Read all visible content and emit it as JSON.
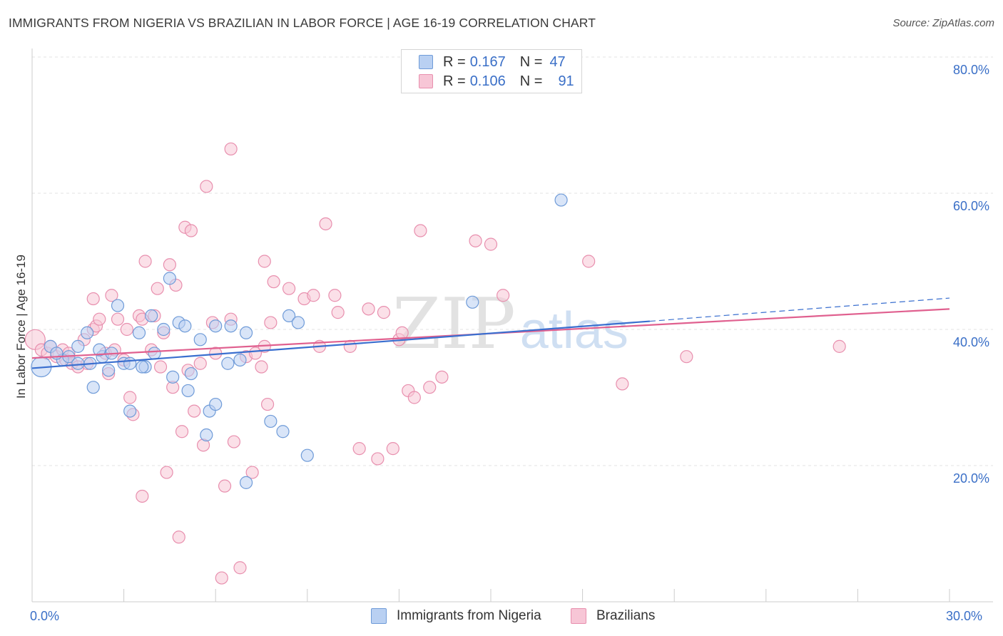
{
  "header": {
    "title": "IMMIGRANTS FROM NIGERIA VS BRAZILIAN IN LABOR FORCE | AGE 16-19 CORRELATION CHART",
    "source": "Source: ZipAtlas.com"
  },
  "watermark": {
    "zip": "ZIP",
    "atlas": "atlas"
  },
  "legend": {
    "series": [
      {
        "r_label": "R =",
        "r_value": "0.167",
        "n_label": "N =",
        "n_value": "47"
      },
      {
        "r_label": "R =",
        "r_value": "0.106",
        "n_label": "N =",
        "n_value": "91"
      }
    ],
    "bottom": [
      "Immigrants from Nigeria",
      "Brazilians"
    ]
  },
  "axes": {
    "y_title": "In Labor Force | Age 16-19",
    "x_min_label": "0.0%",
    "x_max_label": "30.0%",
    "y_tick_labels": [
      "80.0%",
      "60.0%",
      "40.0%",
      "20.0%"
    ]
  },
  "colors": {
    "nigeria_fill": "#b9d0f2",
    "nigeria_stroke": "#6f9bd8",
    "nigeria_line": "#3a6fcf",
    "brazil_fill": "#f7c6d6",
    "brazil_stroke": "#e88fae",
    "brazil_line": "#e0608f",
    "grid": "#e3e3e3",
    "tick_text": "#3a6fc7"
  },
  "chart_data": {
    "type": "scatter",
    "title": "IMMIGRANTS FROM NIGERIA VS BRAZILIAN IN LABOR FORCE | AGE 16-19 CORRELATION CHART",
    "xlabel": "",
    "ylabel": "In Labor Force | Age 16-19",
    "xlim": [
      0,
      30
    ],
    "ylim": [
      0,
      83
    ],
    "x_ticks": [
      0,
      30
    ],
    "y_ticks": [
      20,
      40,
      60,
      80
    ],
    "grid": true,
    "legend_position": "top-center",
    "series": [
      {
        "name": "Immigrants from Nigeria",
        "r": 0.167,
        "n": 47,
        "trend": {
          "x": [
            0,
            20.2
          ],
          "y": [
            34.3,
            41.2
          ]
        },
        "trend_dashed": {
          "x": [
            20.2,
            30
          ],
          "y": [
            41.2,
            44.6
          ]
        },
        "points": [
          {
            "x": 0.3,
            "y": 34.5,
            "big": true
          },
          {
            "x": 0.6,
            "y": 37.5
          },
          {
            "x": 1.0,
            "y": 35.5
          },
          {
            "x": 1.2,
            "y": 36
          },
          {
            "x": 1.5,
            "y": 37.5
          },
          {
            "x": 1.5,
            "y": 35.0
          },
          {
            "x": 1.8,
            "y": 39.5
          },
          {
            "x": 2.0,
            "y": 31.5
          },
          {
            "x": 2.3,
            "y": 36.0
          },
          {
            "x": 2.5,
            "y": 34.0
          },
          {
            "x": 2.6,
            "y": 36.5
          },
          {
            "x": 2.8,
            "y": 43.5
          },
          {
            "x": 3.0,
            "y": 35.0
          },
          {
            "x": 3.2,
            "y": 35.0
          },
          {
            "x": 3.2,
            "y": 28.0
          },
          {
            "x": 3.5,
            "y": 39.5
          },
          {
            "x": 3.7,
            "y": 34.5
          },
          {
            "x": 3.9,
            "y": 42.0
          },
          {
            "x": 4.0,
            "y": 36.5
          },
          {
            "x": 4.3,
            "y": 40.0
          },
          {
            "x": 4.5,
            "y": 47.5
          },
          {
            "x": 4.6,
            "y": 33.0
          },
          {
            "x": 4.8,
            "y": 41.0
          },
          {
            "x": 5.0,
            "y": 40.5
          },
          {
            "x": 5.1,
            "y": 31.0
          },
          {
            "x": 5.2,
            "y": 33.5
          },
          {
            "x": 5.5,
            "y": 38.5
          },
          {
            "x": 5.7,
            "y": 24.5
          },
          {
            "x": 5.8,
            "y": 28.0
          },
          {
            "x": 6.0,
            "y": 40.5
          },
          {
            "x": 6.0,
            "y": 29.0
          },
          {
            "x": 6.4,
            "y": 35.0
          },
          {
            "x": 6.5,
            "y": 40.5
          },
          {
            "x": 6.8,
            "y": 35.5
          },
          {
            "x": 7.0,
            "y": 17.5
          },
          {
            "x": 7.0,
            "y": 39.5
          },
          {
            "x": 7.8,
            "y": 26.5
          },
          {
            "x": 8.2,
            "y": 25.0
          },
          {
            "x": 8.4,
            "y": 42.0
          },
          {
            "x": 8.7,
            "y": 41.0
          },
          {
            "x": 9.0,
            "y": 21.5
          },
          {
            "x": 14.4,
            "y": 44.0
          },
          {
            "x": 17.3,
            "y": 59.0
          },
          {
            "x": 0.8,
            "y": 36.5
          },
          {
            "x": 1.9,
            "y": 35.0
          },
          {
            "x": 2.2,
            "y": 37.0
          },
          {
            "x": 3.6,
            "y": 34.5
          }
        ]
      },
      {
        "name": "Brazilians",
        "r": 0.106,
        "n": 91,
        "trend": {
          "x": [
            0,
            30
          ],
          "y": [
            35.8,
            43.0
          ]
        },
        "points": [
          {
            "x": 0.1,
            "y": 38.5,
            "big": true
          },
          {
            "x": 0.3,
            "y": 37.0
          },
          {
            "x": 0.5,
            "y": 36.5
          },
          {
            "x": 0.6,
            "y": 37.5
          },
          {
            "x": 0.8,
            "y": 36.0
          },
          {
            "x": 1.0,
            "y": 37.0
          },
          {
            "x": 1.1,
            "y": 35.5
          },
          {
            "x": 1.2,
            "y": 36.5
          },
          {
            "x": 1.3,
            "y": 35.0
          },
          {
            "x": 1.5,
            "y": 34.5
          },
          {
            "x": 1.7,
            "y": 38.5
          },
          {
            "x": 1.8,
            "y": 35.0
          },
          {
            "x": 2.0,
            "y": 40.0
          },
          {
            "x": 2.1,
            "y": 40.5
          },
          {
            "x": 2.2,
            "y": 41.5
          },
          {
            "x": 2.0,
            "y": 44.5
          },
          {
            "x": 2.4,
            "y": 36.5
          },
          {
            "x": 2.5,
            "y": 33.5
          },
          {
            "x": 2.7,
            "y": 37.0
          },
          {
            "x": 2.8,
            "y": 41.5
          },
          {
            "x": 2.6,
            "y": 45.0
          },
          {
            "x": 3.0,
            "y": 35.5
          },
          {
            "x": 3.1,
            "y": 40.0
          },
          {
            "x": 3.2,
            "y": 30.0
          },
          {
            "x": 3.3,
            "y": 27.5
          },
          {
            "x": 3.5,
            "y": 42.0
          },
          {
            "x": 3.6,
            "y": 41.5
          },
          {
            "x": 3.6,
            "y": 15.5
          },
          {
            "x": 3.7,
            "y": 50.0
          },
          {
            "x": 3.9,
            "y": 37.0
          },
          {
            "x": 4.0,
            "y": 42.0
          },
          {
            "x": 4.1,
            "y": 46.0
          },
          {
            "x": 4.2,
            "y": 34.5
          },
          {
            "x": 4.3,
            "y": 39.5
          },
          {
            "x": 4.4,
            "y": 19.0
          },
          {
            "x": 4.5,
            "y": 49.5
          },
          {
            "x": 4.6,
            "y": 31.5
          },
          {
            "x": 4.7,
            "y": 46.5
          },
          {
            "x": 4.8,
            "y": 9.5
          },
          {
            "x": 4.9,
            "y": 25.0
          },
          {
            "x": 5.0,
            "y": 55.0
          },
          {
            "x": 5.1,
            "y": 34.0
          },
          {
            "x": 5.2,
            "y": 54.5
          },
          {
            "x": 5.3,
            "y": 28.0
          },
          {
            "x": 5.5,
            "y": 35.0
          },
          {
            "x": 5.6,
            "y": 23.0
          },
          {
            "x": 5.7,
            "y": 61.0
          },
          {
            "x": 5.9,
            "y": 41.0
          },
          {
            "x": 6.0,
            "y": 36.5
          },
          {
            "x": 6.2,
            "y": 3.5
          },
          {
            "x": 6.3,
            "y": 17.0
          },
          {
            "x": 6.5,
            "y": 66.5
          },
          {
            "x": 6.5,
            "y": 41.5
          },
          {
            "x": 6.6,
            "y": 23.5
          },
          {
            "x": 6.8,
            "y": 5.0
          },
          {
            "x": 7.0,
            "y": 36.0
          },
          {
            "x": 7.2,
            "y": 19.0
          },
          {
            "x": 7.3,
            "y": 36.5
          },
          {
            "x": 7.5,
            "y": 34.5
          },
          {
            "x": 7.6,
            "y": 37.5
          },
          {
            "x": 7.6,
            "y": 50.0
          },
          {
            "x": 7.7,
            "y": 29.0
          },
          {
            "x": 7.8,
            "y": 41.0
          },
          {
            "x": 7.9,
            "y": 47.0
          },
          {
            "x": 8.4,
            "y": 46.0
          },
          {
            "x": 8.9,
            "y": 44.5
          },
          {
            "x": 9.2,
            "y": 45.0
          },
          {
            "x": 9.4,
            "y": 37.5
          },
          {
            "x": 9.6,
            "y": 55.5
          },
          {
            "x": 9.9,
            "y": 45.0
          },
          {
            "x": 10.4,
            "y": 37.5
          },
          {
            "x": 10.7,
            "y": 22.5
          },
          {
            "x": 11.0,
            "y": 43.0
          },
          {
            "x": 11.3,
            "y": 21.0
          },
          {
            "x": 11.5,
            "y": 42.5
          },
          {
            "x": 11.8,
            "y": 22.5
          },
          {
            "x": 12.0,
            "y": 38.5
          },
          {
            "x": 12.1,
            "y": 39.5
          },
          {
            "x": 12.3,
            "y": 31.0
          },
          {
            "x": 12.5,
            "y": 30.0
          },
          {
            "x": 12.7,
            "y": 54.5
          },
          {
            "x": 13.0,
            "y": 31.5
          },
          {
            "x": 14.5,
            "y": 53.0
          },
          {
            "x": 15.0,
            "y": 52.5
          },
          {
            "x": 15.4,
            "y": 45.0
          },
          {
            "x": 18.2,
            "y": 50.0
          },
          {
            "x": 19.3,
            "y": 32.0
          },
          {
            "x": 21.4,
            "y": 36.0
          },
          {
            "x": 26.4,
            "y": 37.5
          },
          {
            "x": 13.4,
            "y": 33.0
          },
          {
            "x": 10.0,
            "y": 42.5
          }
        ]
      }
    ]
  }
}
